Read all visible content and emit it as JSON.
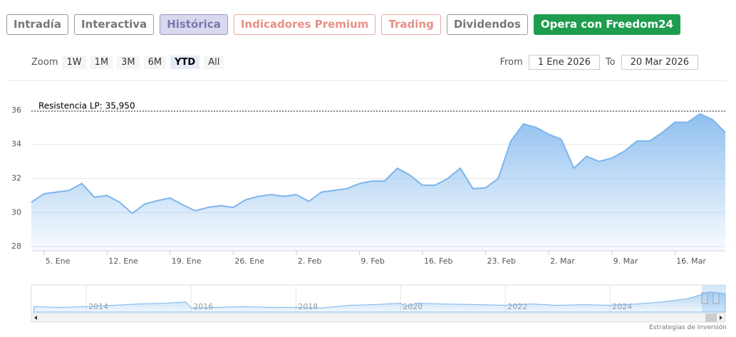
{
  "tabs": [
    "Intradía",
    "Interactiva",
    "Histórica",
    "Indicadores Premium",
    "Trading",
    "Dividendos",
    "Opera con Freedom24"
  ],
  "zoom": {
    "label": "Zoom",
    "buttons": [
      "1W",
      "1M",
      "3M",
      "6M",
      "YTD",
      "All"
    ]
  },
  "range": {
    "from_label": "From",
    "from": "1 Ene 2026",
    "to_label": "To",
    "to": "20 Mar 2026"
  },
  "chart_data": {
    "type": "area",
    "color": "#7cb5ec",
    "grid": true,
    "categories": [
      null,
      "5. Ene",
      null,
      null,
      null,
      null,
      "12. Ene",
      null,
      null,
      null,
      null,
      "19. Ene",
      null,
      null,
      null,
      null,
      "26. Ene",
      null,
      null,
      null,
      null,
      "2. Feb",
      null,
      null,
      null,
      null,
      "9. Feb",
      null,
      null,
      null,
      null,
      "16. Feb",
      null,
      null,
      null,
      null,
      "23. Feb",
      null,
      null,
      null,
      null,
      "2. Mar",
      null,
      null,
      null,
      null,
      "9. Mar",
      null,
      null,
      null,
      null,
      "16. Mar",
      null,
      null,
      null,
      null
    ],
    "values": [
      30.6,
      31.1,
      31.2,
      31.3,
      31.7,
      30.9,
      31.0,
      30.6,
      29.95,
      30.5,
      30.7,
      30.85,
      30.45,
      30.1,
      30.3,
      30.4,
      30.3,
      30.75,
      30.95,
      31.05,
      30.95,
      31.05,
      30.65,
      31.2,
      31.3,
      31.4,
      31.7,
      31.85,
      31.85,
      32.6,
      32.2,
      31.6,
      31.6,
      32.0,
      32.6,
      31.4,
      31.45,
      32.0,
      34.2,
      35.2,
      35.0,
      34.6,
      34.3,
      32.6,
      33.3,
      33.0,
      33.2,
      33.6,
      34.2,
      34.2,
      34.7,
      35.3,
      35.3,
      35.8,
      35.45,
      34.7
    ],
    "ylim": [
      27.75,
      36.5
    ],
    "yticks": [
      28,
      30,
      32,
      34,
      36
    ],
    "resistance": {
      "label": "Resistencia LP: 35,950",
      "value": 35.95
    }
  },
  "navigator": {
    "x": [
      2013.0,
      2013.5,
      2014.0,
      2014.5,
      2015.0,
      2015.5,
      2015.9,
      2016.0,
      2016.5,
      2017.0,
      2017.5,
      2018.0,
      2018.5,
      2019.0,
      2019.5,
      2020.0,
      2020.1,
      2020.3,
      2020.8,
      2021.5,
      2022.0,
      2022.5,
      2023.0,
      2023.5,
      2024.0,
      2024.5,
      2025.0,
      2025.5,
      2025.9,
      2026.2
    ],
    "values": [
      8,
      7,
      8,
      10,
      12,
      13,
      15,
      6,
      7,
      8,
      7,
      7,
      6,
      10,
      11,
      13,
      8,
      13,
      12,
      11,
      10,
      12,
      10,
      11,
      10,
      12,
      15,
      20,
      30,
      27
    ],
    "xlim": [
      2012.95,
      2026.2
    ],
    "ylim": [
      0,
      40
    ],
    "xticks": [
      2014,
      2016,
      2018,
      2020,
      2022,
      2024
    ]
  },
  "credit": "Estrategias de Inversión"
}
